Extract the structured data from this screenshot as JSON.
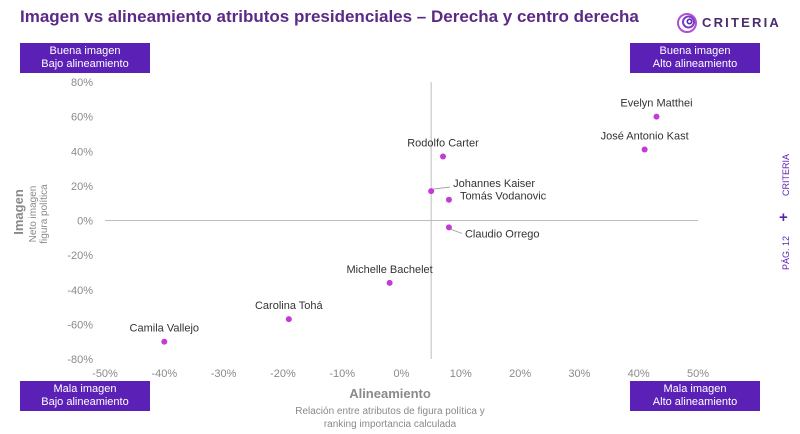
{
  "title": "Imagen vs alineamiento atributos presidenciales – Derecha y centro derecha",
  "logo": {
    "text": "CRITERIA",
    "icon": "criteria-swirl-icon"
  },
  "quadrants": {
    "top_left": {
      "line1": "Buena imagen",
      "line2": "Bajo alineamiento"
    },
    "top_right": {
      "line1": "Buena imagen",
      "line2": "Alto alineamiento"
    },
    "bottom_left": {
      "line1": "Mala imagen",
      "line2": "Bajo alineamiento"
    },
    "bottom_right": {
      "line1": "Mala imagen",
      "line2": "Alto alineamiento"
    }
  },
  "side": {
    "brand": "CRITERIA",
    "page": "PÁG. 12",
    "plus": "+"
  },
  "colors": {
    "accent": "#5b21b6",
    "point": "#c23bd4",
    "title": "#5b2a86"
  },
  "chart_data": {
    "type": "scatter",
    "title": "Imagen vs alineamiento atributos presidenciales – Derecha y centro derecha",
    "xlabel": "Alineamiento",
    "xlabel_sub": [
      "Relación entre atributos de figura política y",
      "ranking importancia calculada"
    ],
    "ylabel": "Imagen",
    "ylabel_sub": [
      "Neto imagen",
      "figura política"
    ],
    "xlim": [
      -0.5,
      0.5
    ],
    "ylim": [
      -0.8,
      0.8
    ],
    "x_ticks": [
      -0.5,
      -0.4,
      -0.3,
      -0.2,
      -0.1,
      0,
      0.1,
      0.2,
      0.3,
      0.4,
      0.5
    ],
    "x_tick_labels": [
      "-50%",
      "-40%",
      "-30%",
      "-20%",
      "-10%",
      "0%",
      "10%",
      "20%",
      "30%",
      "40%",
      "50%"
    ],
    "y_ticks": [
      0.8,
      0.6,
      0.4,
      0.2,
      0,
      -0.2,
      -0.4,
      -0.6,
      -0.8
    ],
    "y_tick_labels": [
      "80%",
      "60%",
      "40%",
      "20%",
      "0%",
      "-20%",
      "-40%",
      "-60%",
      "-80%"
    ],
    "x_crossing": 0.05,
    "points": [
      {
        "name": "Evelyn Matthei",
        "x": 0.43,
        "y": 0.6
      },
      {
        "name": "José Antonio Kast",
        "x": 0.41,
        "y": 0.41
      },
      {
        "name": "Rodolfo Carter",
        "x": 0.07,
        "y": 0.37
      },
      {
        "name": "Johannes Kaiser",
        "x": 0.05,
        "y": 0.17
      },
      {
        "name": "Tomás Vodanovic",
        "x": 0.08,
        "y": 0.12
      },
      {
        "name": "Claudio Orrego",
        "x": 0.08,
        "y": -0.04
      },
      {
        "name": "Michelle Bachelet",
        "x": -0.02,
        "y": -0.36
      },
      {
        "name": "Carolina Tohá",
        "x": -0.19,
        "y": -0.57
      },
      {
        "name": "Camila Vallejo",
        "x": -0.4,
        "y": -0.7
      }
    ]
  }
}
